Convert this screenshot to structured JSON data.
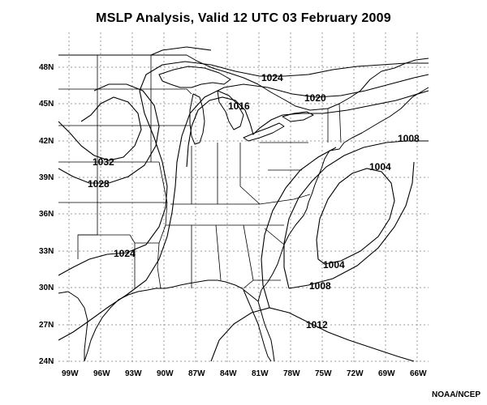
{
  "title": "MSLP Analysis, Valid 12 UTC 03 February 2009",
  "credit": "NOAA/NCEP",
  "lat_labels": [
    "24N",
    "27N",
    "30N",
    "33N",
    "36N",
    "39N",
    "42N",
    "45N",
    "48N"
  ],
  "lon_labels": [
    "99W",
    "96W",
    "93W",
    "90W",
    "87W",
    "84W",
    "81W",
    "78W",
    "75W",
    "72W",
    "69W",
    "66W"
  ],
  "isobar_labels": [
    "1032",
    "1028",
    "1024",
    "1024",
    "1020",
    "1016",
    "1008",
    "1004",
    "1004",
    "1008",
    "1012"
  ],
  "map_extent": {
    "lon_min": -100,
    "lon_max": -65,
    "lat_min": 24,
    "lat_max": 51
  },
  "line_color": "#000000",
  "grid_color": "#9a9a9a"
}
